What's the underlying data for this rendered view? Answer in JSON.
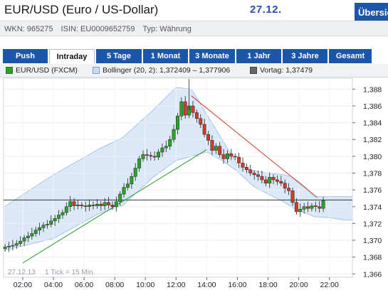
{
  "header": {
    "title": "EUR/USD (Euro / US-Dollar)",
    "date": "27.12.",
    "overview_button": "Übersicht"
  },
  "meta": {
    "wkn": "WKN: 965275",
    "isin": "ISIN: EU0009652759",
    "typ": "Typ: Währung"
  },
  "tabs": [
    "Push",
    "Intraday",
    "5 Tage",
    "1 Monat",
    "3 Monate",
    "1 Jahr",
    "3 Jahre",
    "Gesamt"
  ],
  "active_tab": "Intraday",
  "legend": {
    "price": "EUR/USD (FXCM)",
    "bollinger": "Bollinger (20, 2): 1,372409 – 1,377906",
    "vortag": "Vortag: 1,37479"
  },
  "colors": {
    "tab_blue": "#1b56a8",
    "up": "#2aa32a",
    "down": "#d43a2a",
    "band_fill": "#dbe8f7",
    "band_line": "#a8c4e6",
    "trend_up": "#2aa32a",
    "trend_down": "#d43a2a"
  },
  "chart_data": {
    "type": "candlestick",
    "date_note": "27.12.13",
    "interval_note": "1 Tick = 15 Min.",
    "x_ticks": [
      "02:00",
      "04:00",
      "06:00",
      "08:00",
      "10:00",
      "12:00",
      "14:00",
      "16:00",
      "18:00",
      "20:00",
      "22:00"
    ],
    "y_ticks": [
      "1,388",
      "1,386",
      "1,384",
      "1,382",
      "1,380",
      "1,378",
      "1,376",
      "1,374",
      "1,372",
      "1,370",
      "1,368",
      "1,366"
    ],
    "ylim": [
      1.3656,
      1.3893
    ],
    "x_range_hours": [
      0.75,
      23.5
    ],
    "prev_close": 1.37479,
    "candles_close": [
      1.3692,
      1.3693,
      1.3694,
      1.3696,
      1.3699,
      1.3703,
      1.3705,
      1.3708,
      1.3712,
      1.3715,
      1.3718,
      1.3719,
      1.3723,
      1.3726,
      1.373,
      1.3733,
      1.374,
      1.3746,
      1.3741,
      1.3742,
      1.3741,
      1.374,
      1.3742,
      1.3741,
      1.3743,
      1.3741,
      1.3745,
      1.3742,
      1.374,
      1.3746,
      1.3755,
      1.3763,
      1.3767,
      1.3776,
      1.3786,
      1.3797,
      1.3802,
      1.3801,
      1.38,
      1.3799,
      1.3805,
      1.381,
      1.3812,
      1.382,
      1.3832,
      1.3848,
      1.3865,
      1.3849,
      1.386,
      1.3852,
      1.3845,
      1.3838,
      1.3826,
      1.3819,
      1.3807,
      1.3812,
      1.3802,
      1.3797,
      1.3803,
      1.38,
      1.3799,
      1.3792,
      1.3787,
      1.3784,
      1.378,
      1.3778,
      1.3776,
      1.3772,
      1.3768,
      1.3775,
      1.3772,
      1.377,
      1.3768,
      1.3762,
      1.3759,
      1.3745,
      1.3734,
      1.3737,
      1.374,
      1.3738,
      1.3741,
      1.374,
      1.3738,
      1.3747
    ],
    "bollinger_upper": [
      1.374,
      1.3778,
      1.3809,
      1.3822,
      1.3855,
      1.3882,
      1.388,
      1.385,
      1.382,
      1.379,
      1.3783,
      1.378,
      1.3778,
      1.3776,
      1.377,
      1.3762,
      1.3752,
      1.3752,
      1.3752,
      1.3752
    ],
    "bollinger_lower": [
      1.3688,
      1.3702,
      1.3732,
      1.3741,
      1.3775,
      1.3795,
      1.38,
      1.3805,
      1.3795,
      1.3782,
      1.3765,
      1.3755,
      1.3746,
      1.374,
      1.3735,
      1.3732,
      1.3728,
      1.3727,
      1.3724,
      1.3724
    ],
    "bollinger_hours": [
      0.8,
      4,
      7,
      8.5,
      10.5,
      12,
      13,
      14,
      15,
      16,
      17,
      18,
      19,
      19.5,
      20,
      20.5,
      21,
      22,
      23,
      23.5
    ],
    "trendline_up": [
      [
        2.0,
        1.3673
      ],
      [
        14.0,
        1.3808
      ]
    ],
    "trendline_down": [
      [
        13.0,
        1.3872
      ],
      [
        21.2,
        1.3751
      ]
    ]
  }
}
